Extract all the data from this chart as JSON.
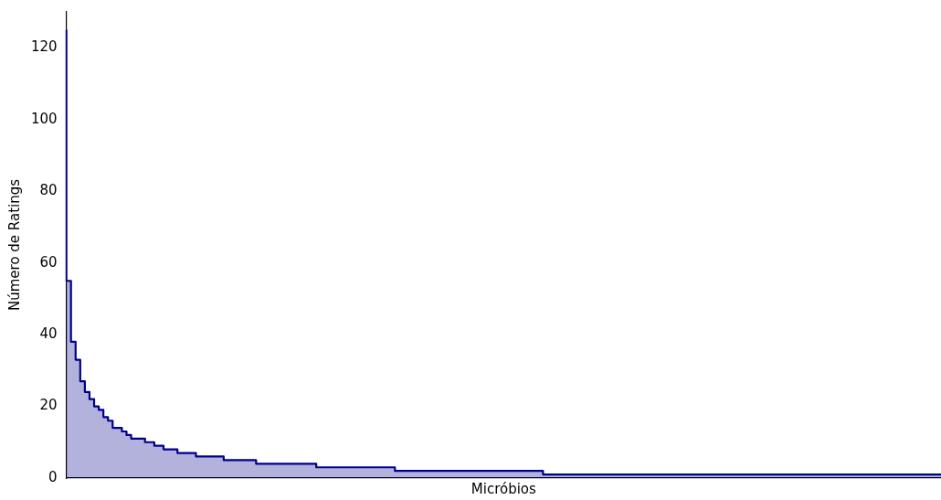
{
  "chart_data": {
    "type": "area",
    "xlabel": "Micróbios",
    "ylabel": "Número de Ratings",
    "categories": [
      null,
      null,
      null,
      null,
      null,
      null,
      null,
      null,
      null,
      null,
      null,
      null,
      null,
      null,
      null,
      null,
      null,
      null,
      null,
      null,
      null,
      null,
      null,
      null,
      null,
      null,
      null,
      null,
      null,
      null,
      null,
      null,
      null,
      null,
      null,
      null,
      null,
      null,
      null,
      null,
      null,
      null,
      null,
      null,
      null,
      null,
      null,
      null,
      null,
      null,
      null,
      null,
      null,
      null,
      null,
      null,
      null,
      null,
      null,
      null,
      null,
      null,
      null,
      null,
      null,
      null,
      null,
      null,
      null,
      null,
      null,
      null,
      null,
      null,
      null,
      null,
      null,
      null,
      null,
      null,
      null,
      null,
      null,
      null,
      null,
      null,
      null,
      null,
      null,
      null,
      null,
      null,
      null,
      null,
      null,
      null,
      null,
      null,
      null,
      null,
      null,
      null,
      null,
      null,
      null,
      null,
      null,
      null,
      null,
      null,
      null,
      null,
      null,
      null,
      null,
      null,
      null,
      null,
      null,
      null,
      null,
      null,
      null,
      null,
      null,
      null,
      null,
      null,
      null,
      null,
      null,
      null,
      null,
      null,
      null,
      null,
      null,
      null,
      null,
      null,
      null,
      null,
      null,
      null,
      null,
      null,
      null,
      null,
      null,
      null,
      null,
      null,
      null,
      null,
      null,
      null,
      null,
      null,
      null,
      null,
      null,
      null,
      null,
      null,
      null,
      null,
      null,
      null,
      null,
      null,
      null,
      null,
      null,
      null,
      null,
      null,
      null,
      null,
      null,
      null,
      null,
      null,
      null,
      null,
      null,
      null,
      null,
      null,
      null,
      null
    ],
    "series": [
      {
        "color": "#00008b",
        "values": [
          125,
          55,
          38,
          33,
          27,
          24,
          22,
          20,
          19,
          17,
          16,
          14,
          14,
          13,
          12,
          11,
          11,
          11,
          10,
          10,
          9,
          9,
          8,
          8,
          8,
          7,
          7,
          7,
          7,
          6,
          6,
          6,
          6,
          6,
          6,
          5,
          5,
          5,
          5,
          5,
          5,
          5,
          4,
          4,
          4,
          4,
          4,
          4,
          4,
          4,
          4,
          4,
          4,
          4,
          4,
          3,
          3,
          3,
          3,
          3,
          3,
          3,
          3,
          3,
          3,
          3,
          3,
          3,
          3,
          3,
          3,
          3,
          2,
          2,
          2,
          2,
          2,
          2,
          2,
          2,
          2,
          2,
          2,
          2,
          2,
          2,
          2,
          2,
          2,
          2,
          2,
          2,
          2,
          2,
          2,
          2,
          2,
          2,
          2,
          2,
          2,
          2,
          2,
          2,
          1,
          1,
          1,
          1,
          1,
          1,
          1,
          1,
          1,
          1,
          1,
          1,
          1,
          1,
          1,
          1,
          1,
          1,
          1,
          1,
          1,
          1,
          1,
          1,
          1,
          1,
          1,
          1,
          1,
          1,
          1,
          1,
          1,
          1,
          1,
          1,
          1,
          1,
          1,
          1,
          1,
          1,
          1,
          1,
          1,
          1,
          1,
          1,
          1,
          1,
          1,
          1,
          1,
          1,
          1,
          1,
          1,
          1,
          1,
          1,
          1,
          1,
          1,
          1,
          1,
          1,
          1,
          1,
          1,
          1,
          1,
          1,
          1,
          1,
          1,
          1,
          1,
          1,
          1,
          1,
          1,
          1,
          1,
          1,
          1,
          1
        ]
      }
    ],
    "ylim": [
      0,
      130
    ],
    "yticks": [
      0,
      20,
      40,
      60,
      80,
      100,
      120
    ],
    "tick_labels": "y",
    "grid": false,
    "legend": false
  }
}
